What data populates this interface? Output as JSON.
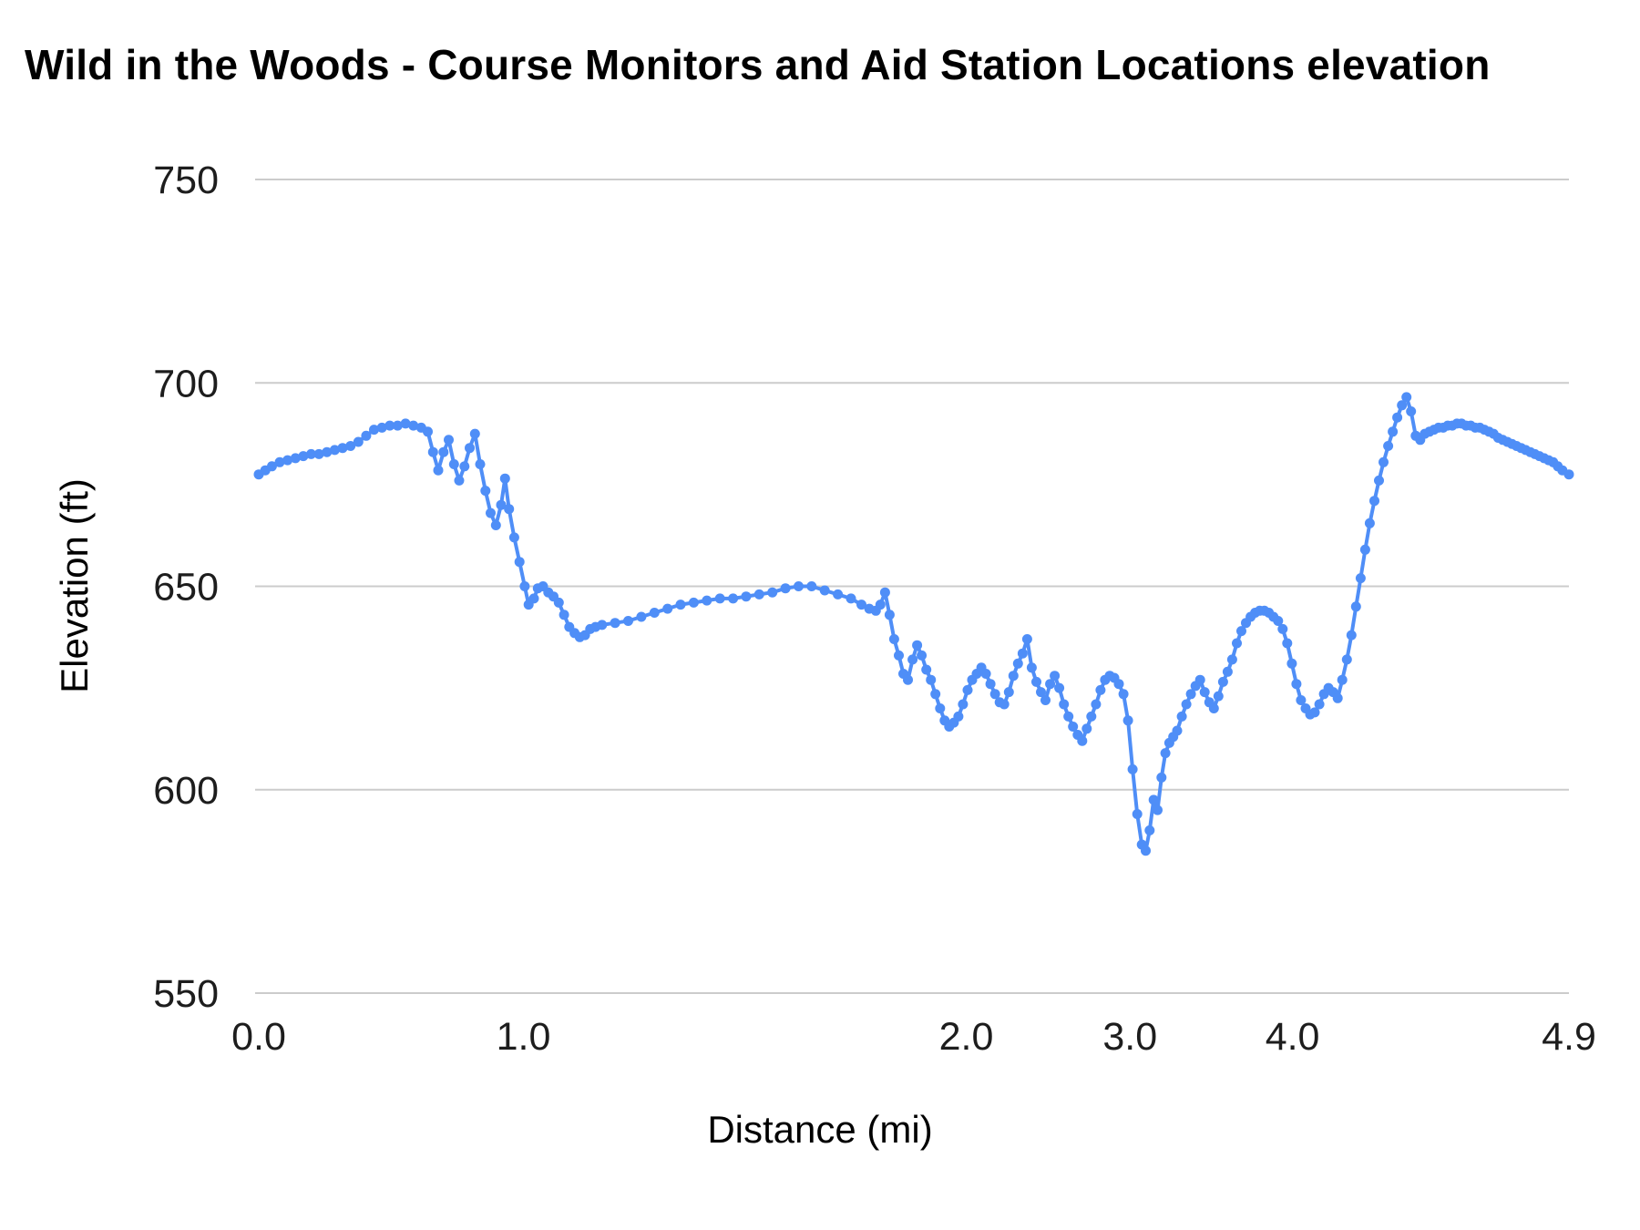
{
  "title": "Wild in the Woods - Course Monitors and Aid Station Locations elevation",
  "chart_data": {
    "type": "line",
    "title": "Wild in the Woods - Course Monitors and Aid Station Locations elevation",
    "xlabel": "Distance (mi)",
    "ylabel": "Elevation (ft)",
    "ylim": [
      550,
      750
    ],
    "yticks": [
      550,
      600,
      650,
      700,
      750
    ],
    "xticks": [
      {
        "label": "0.0",
        "pos": 0.0
      },
      {
        "label": "1.0",
        "pos": 0.202
      },
      {
        "label": "2.0",
        "pos": 0.54
      },
      {
        "label": "3.0",
        "pos": 0.665
      },
      {
        "label": "4.0",
        "pos": 0.789
      },
      {
        "label": "4.9",
        "pos": 1.0
      }
    ],
    "distance_range_mi": [
      0.0,
      4.9
    ],
    "grid": true,
    "grid_color": "#cccccc",
    "legend": "none",
    "line_color": "#4f8ef7",
    "marker": "circle",
    "x_encoding": "fraction_of_axis",
    "points": [
      [
        0.0,
        677.5
      ],
      [
        0.005,
        678.5
      ],
      [
        0.01,
        679.5
      ],
      [
        0.016,
        680.5
      ],
      [
        0.022,
        681.0
      ],
      [
        0.028,
        681.5
      ],
      [
        0.034,
        682.0
      ],
      [
        0.04,
        682.5
      ],
      [
        0.046,
        682.5
      ],
      [
        0.052,
        683.0
      ],
      [
        0.058,
        683.5
      ],
      [
        0.064,
        684.0
      ],
      [
        0.07,
        684.5
      ],
      [
        0.076,
        685.5
      ],
      [
        0.082,
        687.0
      ],
      [
        0.088,
        688.5
      ],
      [
        0.094,
        689.0
      ],
      [
        0.1,
        689.5
      ],
      [
        0.106,
        689.5
      ],
      [
        0.112,
        690.0
      ],
      [
        0.118,
        689.5
      ],
      [
        0.124,
        689.0
      ],
      [
        0.129,
        688.0
      ],
      [
        0.133,
        683.0
      ],
      [
        0.137,
        678.5
      ],
      [
        0.141,
        683.0
      ],
      [
        0.145,
        686.0
      ],
      [
        0.149,
        680.0
      ],
      [
        0.153,
        676.0
      ],
      [
        0.157,
        679.5
      ],
      [
        0.161,
        684.0
      ],
      [
        0.165,
        687.5
      ],
      [
        0.169,
        680.0
      ],
      [
        0.173,
        673.5
      ],
      [
        0.177,
        668.0
      ],
      [
        0.181,
        665.0
      ],
      [
        0.185,
        670.0
      ],
      [
        0.188,
        676.5
      ],
      [
        0.191,
        669.0
      ],
      [
        0.195,
        662.0
      ],
      [
        0.199,
        656.0
      ],
      [
        0.203,
        650.0
      ],
      [
        0.206,
        645.5
      ],
      [
        0.21,
        647.0
      ],
      [
        0.213,
        649.5
      ],
      [
        0.217,
        650.0
      ],
      [
        0.221,
        648.5
      ],
      [
        0.225,
        647.5
      ],
      [
        0.229,
        646.0
      ],
      [
        0.233,
        643.0
      ],
      [
        0.237,
        640.0
      ],
      [
        0.241,
        638.5
      ],
      [
        0.245,
        637.5
      ],
      [
        0.249,
        638.0
      ],
      [
        0.253,
        639.5
      ],
      [
        0.257,
        640.0
      ],
      [
        0.262,
        640.5
      ],
      [
        0.272,
        641.0
      ],
      [
        0.282,
        641.5
      ],
      [
        0.292,
        642.5
      ],
      [
        0.302,
        643.5
      ],
      [
        0.312,
        644.5
      ],
      [
        0.322,
        645.5
      ],
      [
        0.332,
        646.0
      ],
      [
        0.342,
        646.5
      ],
      [
        0.352,
        647.0
      ],
      [
        0.362,
        647.0
      ],
      [
        0.372,
        647.5
      ],
      [
        0.382,
        648.0
      ],
      [
        0.392,
        648.5
      ],
      [
        0.402,
        649.5
      ],
      [
        0.412,
        650.0
      ],
      [
        0.422,
        650.0
      ],
      [
        0.432,
        649.0
      ],
      [
        0.442,
        648.0
      ],
      [
        0.452,
        647.0
      ],
      [
        0.46,
        645.5
      ],
      [
        0.466,
        644.5
      ],
      [
        0.471,
        644.0
      ],
      [
        0.4745,
        645.5
      ],
      [
        0.478,
        648.5
      ],
      [
        0.4815,
        643.0
      ],
      [
        0.485,
        637.0
      ],
      [
        0.4885,
        633.0
      ],
      [
        0.492,
        628.5
      ],
      [
        0.4955,
        627.0
      ],
      [
        0.499,
        632.0
      ],
      [
        0.5025,
        635.5
      ],
      [
        0.506,
        633.0
      ],
      [
        0.5095,
        629.5
      ],
      [
        0.513,
        627.0
      ],
      [
        0.5165,
        623.5
      ],
      [
        0.52,
        620.0
      ],
      [
        0.5235,
        617.0
      ],
      [
        0.527,
        615.5
      ],
      [
        0.5305,
        616.5
      ],
      [
        0.534,
        618.0
      ],
      [
        0.5375,
        621.0
      ],
      [
        0.541,
        624.5
      ],
      [
        0.5445,
        627.0
      ],
      [
        0.548,
        628.5
      ],
      [
        0.5515,
        630.0
      ],
      [
        0.555,
        628.5
      ],
      [
        0.5585,
        626.0
      ],
      [
        0.562,
        623.5
      ],
      [
        0.5655,
        621.5
      ],
      [
        0.569,
        621.0
      ],
      [
        0.5725,
        624.0
      ],
      [
        0.576,
        628.0
      ],
      [
        0.5795,
        631.0
      ],
      [
        0.583,
        633.5
      ],
      [
        0.5865,
        637.0
      ],
      [
        0.59,
        630.0
      ],
      [
        0.5935,
        626.5
      ],
      [
        0.597,
        624.0
      ],
      [
        0.6005,
        622.0
      ],
      [
        0.604,
        626.0
      ],
      [
        0.6075,
        628.0
      ],
      [
        0.611,
        625.0
      ],
      [
        0.6145,
        621.0
      ],
      [
        0.618,
        618.0
      ],
      [
        0.6215,
        615.5
      ],
      [
        0.625,
        613.5
      ],
      [
        0.6285,
        612.0
      ],
      [
        0.632,
        615.0
      ],
      [
        0.6355,
        618.0
      ],
      [
        0.639,
        621.0
      ],
      [
        0.6425,
        624.5
      ],
      [
        0.646,
        627.0
      ],
      [
        0.6495,
        628.0
      ],
      [
        0.653,
        627.5
      ],
      [
        0.6565,
        626.0
      ],
      [
        0.66,
        623.5
      ],
      [
        0.6635,
        617.0
      ],
      [
        0.667,
        605.0
      ],
      [
        0.6705,
        594.0
      ],
      [
        0.674,
        586.5
      ],
      [
        0.677,
        585.0
      ],
      [
        0.68,
        590.0
      ],
      [
        0.683,
        597.5
      ],
      [
        0.686,
        595.0
      ],
      [
        0.689,
        603.0
      ],
      [
        0.692,
        609.0
      ],
      [
        0.695,
        611.5
      ],
      [
        0.698,
        613.0
      ],
      [
        0.701,
        614.5
      ],
      [
        0.7045,
        618.0
      ],
      [
        0.708,
        621.0
      ],
      [
        0.7115,
        623.5
      ],
      [
        0.715,
        625.5
      ],
      [
        0.7185,
        627.0
      ],
      [
        0.722,
        624.0
      ],
      [
        0.7255,
        621.5
      ],
      [
        0.729,
        620.0
      ],
      [
        0.7325,
        623.0
      ],
      [
        0.736,
        626.5
      ],
      [
        0.7395,
        629.0
      ],
      [
        0.743,
        632.0
      ],
      [
        0.7465,
        636.0
      ],
      [
        0.75,
        639.0
      ],
      [
        0.7535,
        641.0
      ],
      [
        0.757,
        642.5
      ],
      [
        0.7605,
        643.5
      ],
      [
        0.764,
        644.0
      ],
      [
        0.7675,
        644.0
      ],
      [
        0.771,
        643.5
      ],
      [
        0.7745,
        642.5
      ],
      [
        0.778,
        641.5
      ],
      [
        0.7815,
        639.5
      ],
      [
        0.785,
        636.0
      ],
      [
        0.7885,
        631.0
      ],
      [
        0.792,
        626.0
      ],
      [
        0.7955,
        622.0
      ],
      [
        0.799,
        620.0
      ],
      [
        0.8025,
        618.5
      ],
      [
        0.806,
        619.0
      ],
      [
        0.8095,
        621.0
      ],
      [
        0.813,
        623.5
      ],
      [
        0.8165,
        625.0
      ],
      [
        0.82,
        624.0
      ],
      [
        0.8235,
        622.5
      ],
      [
        0.827,
        627.0
      ],
      [
        0.8305,
        632.0
      ],
      [
        0.834,
        638.0
      ],
      [
        0.8375,
        645.0
      ],
      [
        0.841,
        652.0
      ],
      [
        0.8445,
        659.0
      ],
      [
        0.848,
        665.5
      ],
      [
        0.8515,
        671.0
      ],
      [
        0.855,
        676.0
      ],
      [
        0.8585,
        680.5
      ],
      [
        0.862,
        684.5
      ],
      [
        0.8655,
        688.0
      ],
      [
        0.869,
        691.5
      ],
      [
        0.8725,
        694.5
      ],
      [
        0.876,
        696.5
      ],
      [
        0.8795,
        693.0
      ],
      [
        0.883,
        687.0
      ],
      [
        0.8865,
        686.0
      ],
      [
        0.89,
        687.5
      ],
      [
        0.8935,
        688.0
      ],
      [
        0.897,
        688.5
      ],
      [
        0.9005,
        689.0
      ],
      [
        0.904,
        689.0
      ],
      [
        0.9075,
        689.5
      ],
      [
        0.911,
        689.5
      ],
      [
        0.9145,
        690.0
      ],
      [
        0.918,
        690.0
      ],
      [
        0.9215,
        689.5
      ],
      [
        0.925,
        689.5
      ],
      [
        0.9285,
        689.0
      ],
      [
        0.932,
        689.0
      ],
      [
        0.9355,
        688.5
      ],
      [
        0.939,
        688.0
      ],
      [
        0.9425,
        687.5
      ],
      [
        0.946,
        686.5
      ],
      [
        0.9495,
        686.0
      ],
      [
        0.953,
        685.5
      ],
      [
        0.9565,
        685.0
      ],
      [
        0.96,
        684.5
      ],
      [
        0.9635,
        684.0
      ],
      [
        0.967,
        683.5
      ],
      [
        0.9705,
        683.0
      ],
      [
        0.974,
        682.5
      ],
      [
        0.9775,
        682.0
      ],
      [
        0.981,
        681.5
      ],
      [
        0.9845,
        681.0
      ],
      [
        0.988,
        680.5
      ],
      [
        0.9915,
        679.5
      ],
      [
        0.995,
        678.5
      ],
      [
        1.0,
        677.5
      ]
    ]
  }
}
